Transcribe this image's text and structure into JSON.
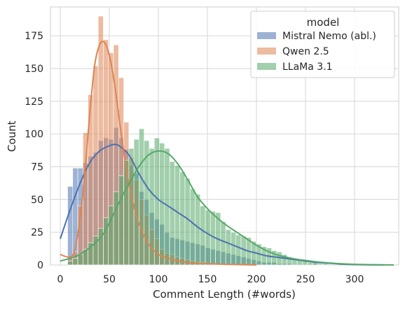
{
  "chart_data": {
    "type": "histogram",
    "xlabel": "Comment Length (#words)",
    "ylabel": "Count",
    "xlim": [
      -10,
      345
    ],
    "ylim": [
      0,
      197
    ],
    "x_ticks": [
      0,
      50,
      100,
      150,
      200,
      250,
      300
    ],
    "y_ticks": [
      0,
      25,
      50,
      75,
      100,
      125,
      150,
      175
    ],
    "bin_start": 7.5,
    "bin_width": 5.2,
    "grid": true,
    "legend": {
      "title": "model",
      "position": "top-right",
      "entries": [
        "Mistral Nemo (abl.)",
        "Qwen 2.5",
        "LLaMa 3.1"
      ]
    },
    "series": [
      {
        "name": "Mistral Nemo (abl.)",
        "color": "#4c72b0",
        "counts": [
          60,
          74,
          74,
          78,
          83,
          86,
          95,
          97,
          96,
          105,
          97,
          88,
          76,
          70,
          56,
          50,
          40,
          35,
          31,
          25,
          21,
          20,
          19,
          18,
          17,
          16,
          15,
          13,
          12,
          11,
          10,
          9,
          8,
          7,
          6,
          5,
          4,
          3,
          2,
          2,
          2,
          1,
          1,
          1,
          0,
          0,
          0,
          0,
          1
        ],
        "kde_x": [
          0,
          10,
          20,
          30,
          40,
          50,
          55,
          60,
          70,
          80,
          90,
          100,
          110,
          120,
          130,
          140,
          150,
          160,
          170,
          180,
          190,
          200,
          210,
          220,
          230,
          240,
          250,
          260,
          270,
          280,
          290,
          300,
          315,
          330
        ],
        "kde_y": [
          20,
          42,
          62,
          78,
          87,
          91,
          92,
          91,
          84,
          70,
          58,
          50,
          45,
          40,
          35,
          29,
          24,
          20,
          17,
          14,
          11,
          9,
          7,
          6,
          5,
          4,
          3,
          2,
          1.5,
          1,
          0.5,
          0.3,
          0.1,
          0
        ]
      },
      {
        "name": "Qwen 2.5",
        "color": "#dd8452",
        "counts": [
          5,
          10,
          45,
          101,
          130,
          152,
          190,
          172,
          162,
          168,
          143,
          109,
          82,
          65,
          50,
          38,
          27,
          20,
          12,
          9,
          8,
          6,
          5,
          4,
          3,
          2,
          2,
          1,
          1,
          1
        ],
        "kde_x": [
          0,
          10,
          15,
          20,
          25,
          30,
          35,
          40,
          45,
          50,
          55,
          60,
          65,
          70,
          75,
          80,
          90,
          100,
          110,
          120,
          130,
          140,
          150,
          170,
          200
        ],
        "kde_y": [
          8,
          6,
          12,
          35,
          70,
          115,
          152,
          168,
          170,
          160,
          140,
          112,
          85,
          62,
          45,
          32,
          16,
          8,
          5,
          3,
          2,
          1.5,
          1,
          0.5,
          0
        ]
      },
      {
        "name": "LLaMa 3.1",
        "color": "#55a868",
        "counts": [
          3,
          5,
          8,
          12,
          17,
          22,
          28,
          36,
          45,
          56,
          68,
          80,
          89,
          96,
          104,
          95,
          89,
          97,
          93,
          89,
          79,
          76,
          71,
          66,
          58,
          54,
          45,
          42,
          41,
          40,
          33,
          27,
          25,
          23,
          22,
          21,
          18,
          16,
          14,
          13,
          11,
          10,
          8,
          6,
          5,
          4,
          3,
          2,
          2,
          1,
          1
        ],
        "kde_x": [
          0,
          20,
          40,
          50,
          60,
          70,
          80,
          90,
          100,
          110,
          120,
          130,
          140,
          150,
          160,
          170,
          180,
          190,
          200,
          210,
          220,
          230,
          240,
          250,
          260,
          270,
          280,
          290,
          300,
          320,
          340
        ],
        "kde_y": [
          3,
          8,
          20,
          32,
          48,
          62,
          75,
          84,
          87,
          85,
          77,
          65,
          52,
          43,
          36,
          30,
          25,
          20,
          15,
          11,
          8,
          6,
          4.5,
          3.5,
          2.5,
          1.8,
          1.2,
          0.8,
          0.5,
          0.2,
          0
        ]
      }
    ]
  }
}
